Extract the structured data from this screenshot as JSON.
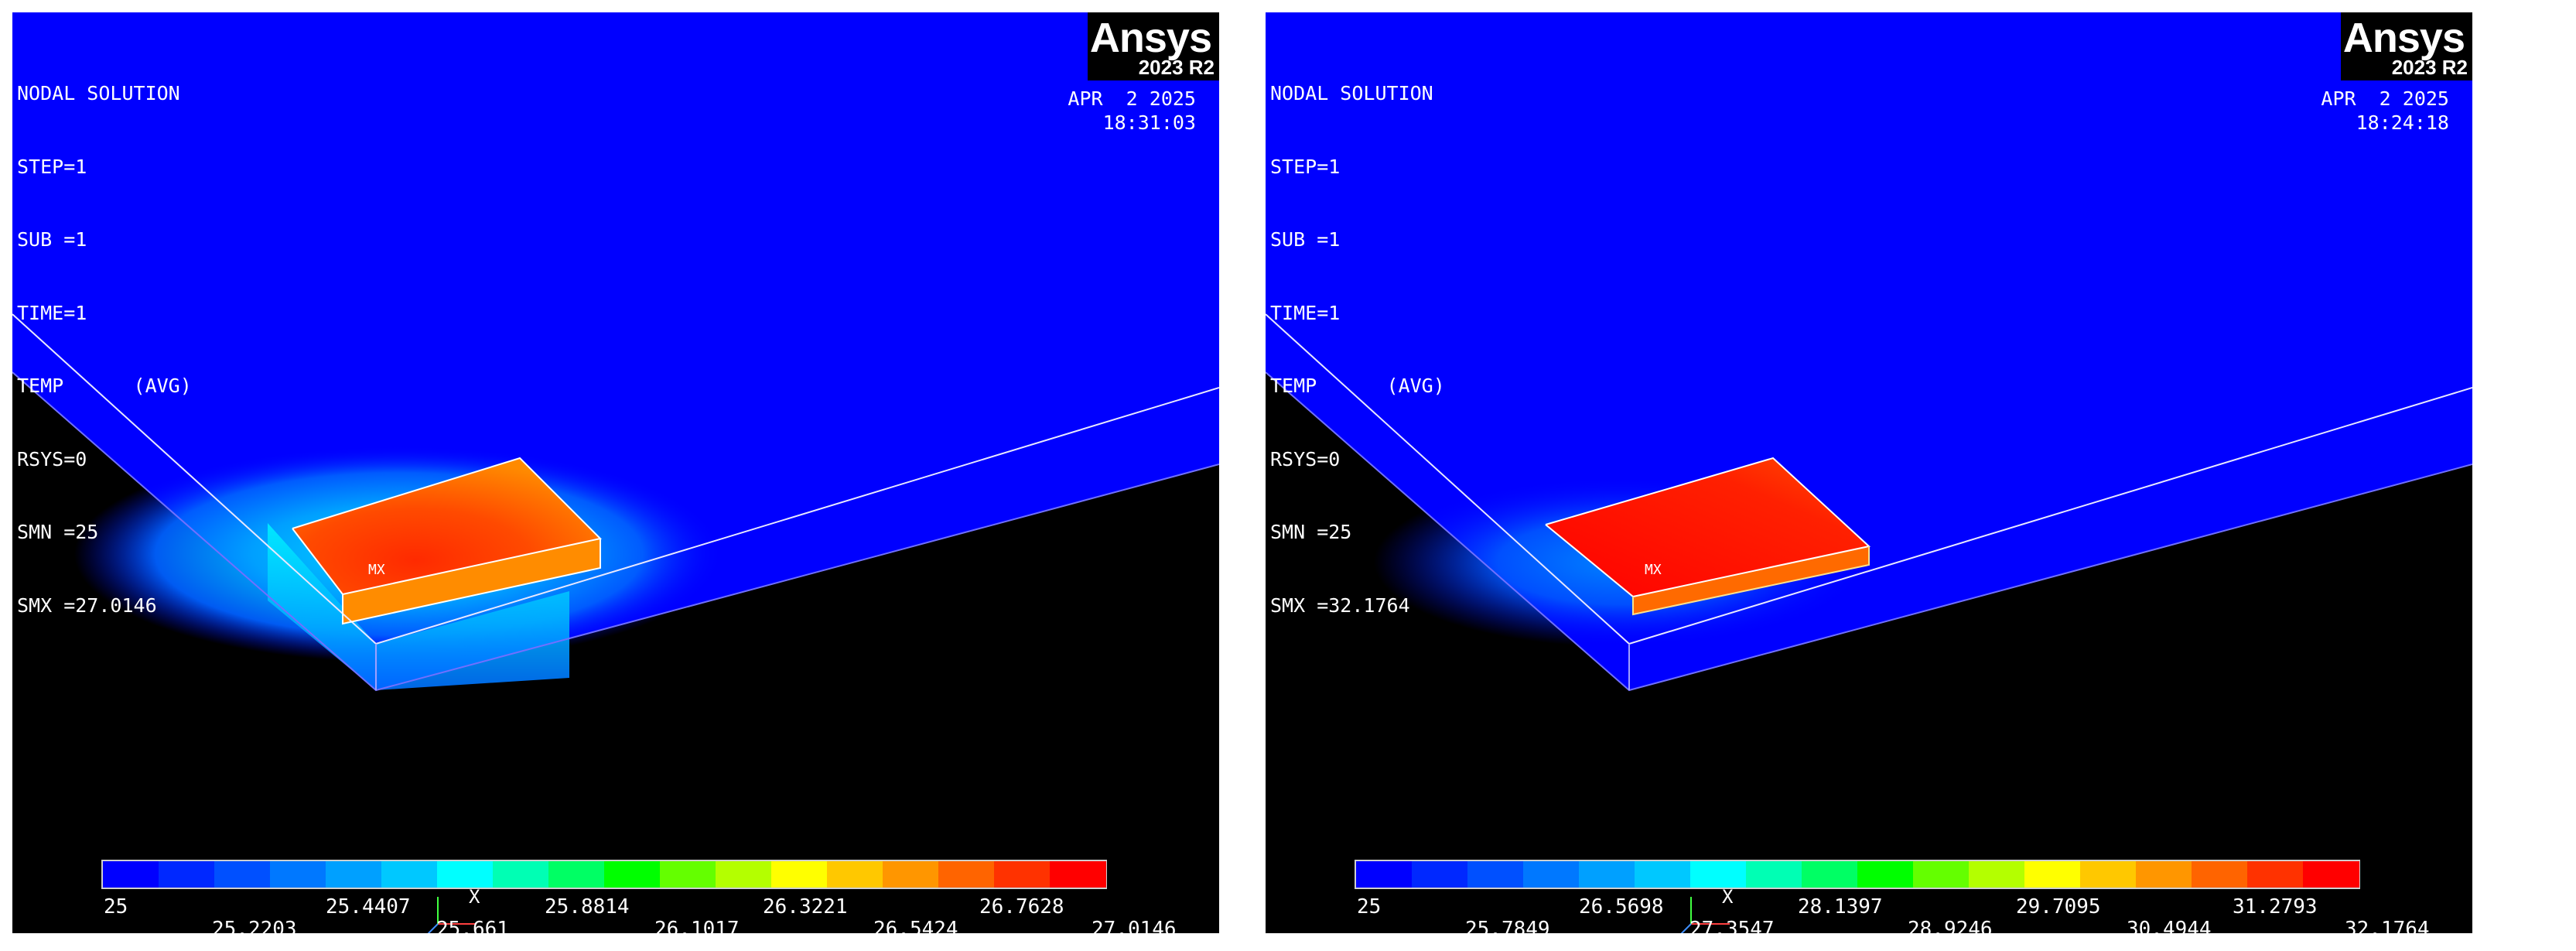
{
  "panels": [
    {
      "title": "NODAL SOLUTION",
      "info_lines": [
        "STEP=1",
        "SUB =1",
        "TIME=1",
        "TEMP      (AVG)",
        "RSYS=0",
        "SMN =25",
        "SMX =27.0146"
      ],
      "date": "APR  2 2025",
      "time": "18:31:03",
      "logo": {
        "name": "Ansys",
        "version": "2023 R2"
      },
      "max_marker": "MX",
      "triad_label": "X",
      "legend_top": [
        "25",
        "25.4407",
        "25.8814",
        "26.3221",
        "26.7628"
      ],
      "legend_bottom": [
        "25.2203",
        "25.661",
        "26.1017",
        "26.5424",
        "27.0146"
      ]
    },
    {
      "title": "NODAL SOLUTION",
      "info_lines": [
        "STEP=1",
        "SUB =1",
        "TIME=1",
        "TEMP      (AVG)",
        "RSYS=0",
        "SMN =25",
        "SMX =32.1764"
      ],
      "date": "APR  2 2025",
      "time": "18:24:18",
      "logo": {
        "name": "Ansys",
        "version": "2023 R2"
      },
      "max_marker": "MX",
      "triad_label": "X",
      "legend_top": [
        "25",
        "26.5698",
        "28.1397",
        "29.7095",
        "31.2793"
      ],
      "legend_bottom": [
        "25.7849",
        "27.3547",
        "28.9246",
        "30.4944",
        "32.1764"
      ]
    }
  ],
  "colors": {
    "plate": "#0000ff",
    "background": "#000000",
    "contour_scale": [
      "#0000ff",
      "#0028ff",
      "#0050ff",
      "#0078ff",
      "#00a0ff",
      "#00c8ff",
      "#00ffff",
      "#00ffb4",
      "#00ff64",
      "#00ff00",
      "#64ff00",
      "#b4ff00",
      "#ffff00",
      "#ffc800",
      "#ff9600",
      "#ff6400",
      "#ff3200",
      "#ff0000"
    ]
  }
}
